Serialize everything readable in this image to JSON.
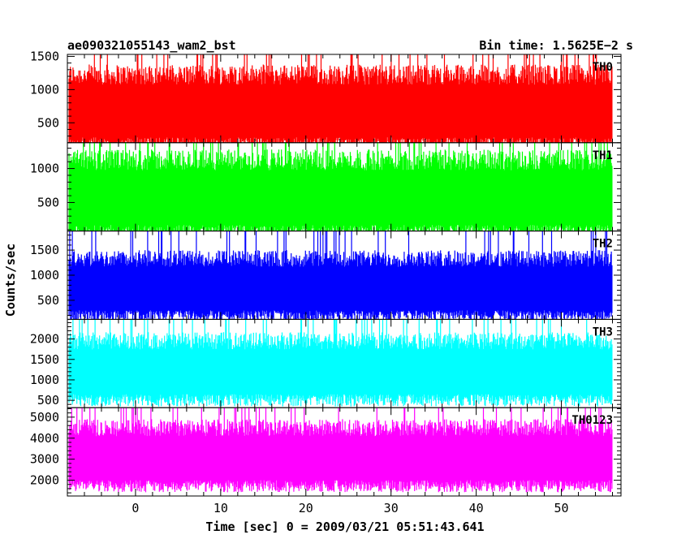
{
  "chart_data": {
    "type": "line",
    "title": "ae090321055143_wam2_bst",
    "subtitle": "Bin time: 1.5625E−2 s",
    "xlabel": "Time [sec] 0 = 2009/03/21 05:51:43.641",
    "ylabel": "Counts/sec",
    "xlim": [
      -8,
      57
    ],
    "x_ticks": [
      0,
      10,
      20,
      30,
      40,
      50
    ],
    "x_data_range": [
      -7.8,
      56
    ],
    "grid": false,
    "panels": [
      {
        "name": "TH0",
        "color": "#ff0000",
        "ylim": [
          200,
          1530
        ],
        "y_ticks": [
          500,
          1000,
          1500
        ],
        "typical_low": 280,
        "typical_high": 1150
      },
      {
        "name": "TH1",
        "color": "#00ff00",
        "ylim": [
          80,
          1380
        ],
        "y_ticks": [
          500,
          1000
        ],
        "typical_low": 170,
        "typical_high": 1050
      },
      {
        "name": "TH2",
        "color": "#0000ff",
        "ylim": [
          120,
          1880
        ],
        "y_ticks": [
          500,
          1000,
          1500
        ],
        "typical_low": 300,
        "typical_high": 1250
      },
      {
        "name": "TH3",
        "color": "#00ffff",
        "ylim": [
          320,
          2480
        ],
        "y_ticks": [
          500,
          1000,
          1500,
          2000
        ],
        "typical_low": 650,
        "typical_high": 1850
      },
      {
        "name": "TH0123",
        "color": "#ff00ff",
        "ylim": [
          1250,
          5450
        ],
        "y_ticks": [
          2000,
          3000,
          4000,
          5000
        ],
        "typical_low": 2000,
        "typical_high": 4300
      }
    ]
  }
}
